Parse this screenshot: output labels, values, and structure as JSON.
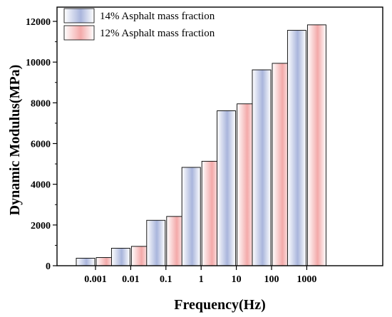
{
  "chart_data": {
    "type": "bar",
    "title": "",
    "xlabel": "Frequency(Hz)",
    "ylabel": "Dynamic Modulus(MPa)",
    "categories": [
      "0.001",
      "0.01",
      "0.1",
      "1",
      "10",
      "100",
      "1000"
    ],
    "series": [
      {
        "name": "14% Asphalt mass fraction",
        "values": [
          370,
          860,
          2230,
          4830,
          7610,
          9620,
          11560
        ],
        "color": "#a9b5dc"
      },
      {
        "name": "12% Asphalt mass fraction",
        "values": [
          400,
          950,
          2420,
          5130,
          7950,
          9940,
          11830
        ],
        "color": "#f3a9a9"
      }
    ],
    "ylim": [
      0,
      12700
    ],
    "yticks": [
      0,
      2000,
      4000,
      6000,
      8000,
      10000,
      12000
    ],
    "grid": false,
    "legend_position": "top-left"
  }
}
